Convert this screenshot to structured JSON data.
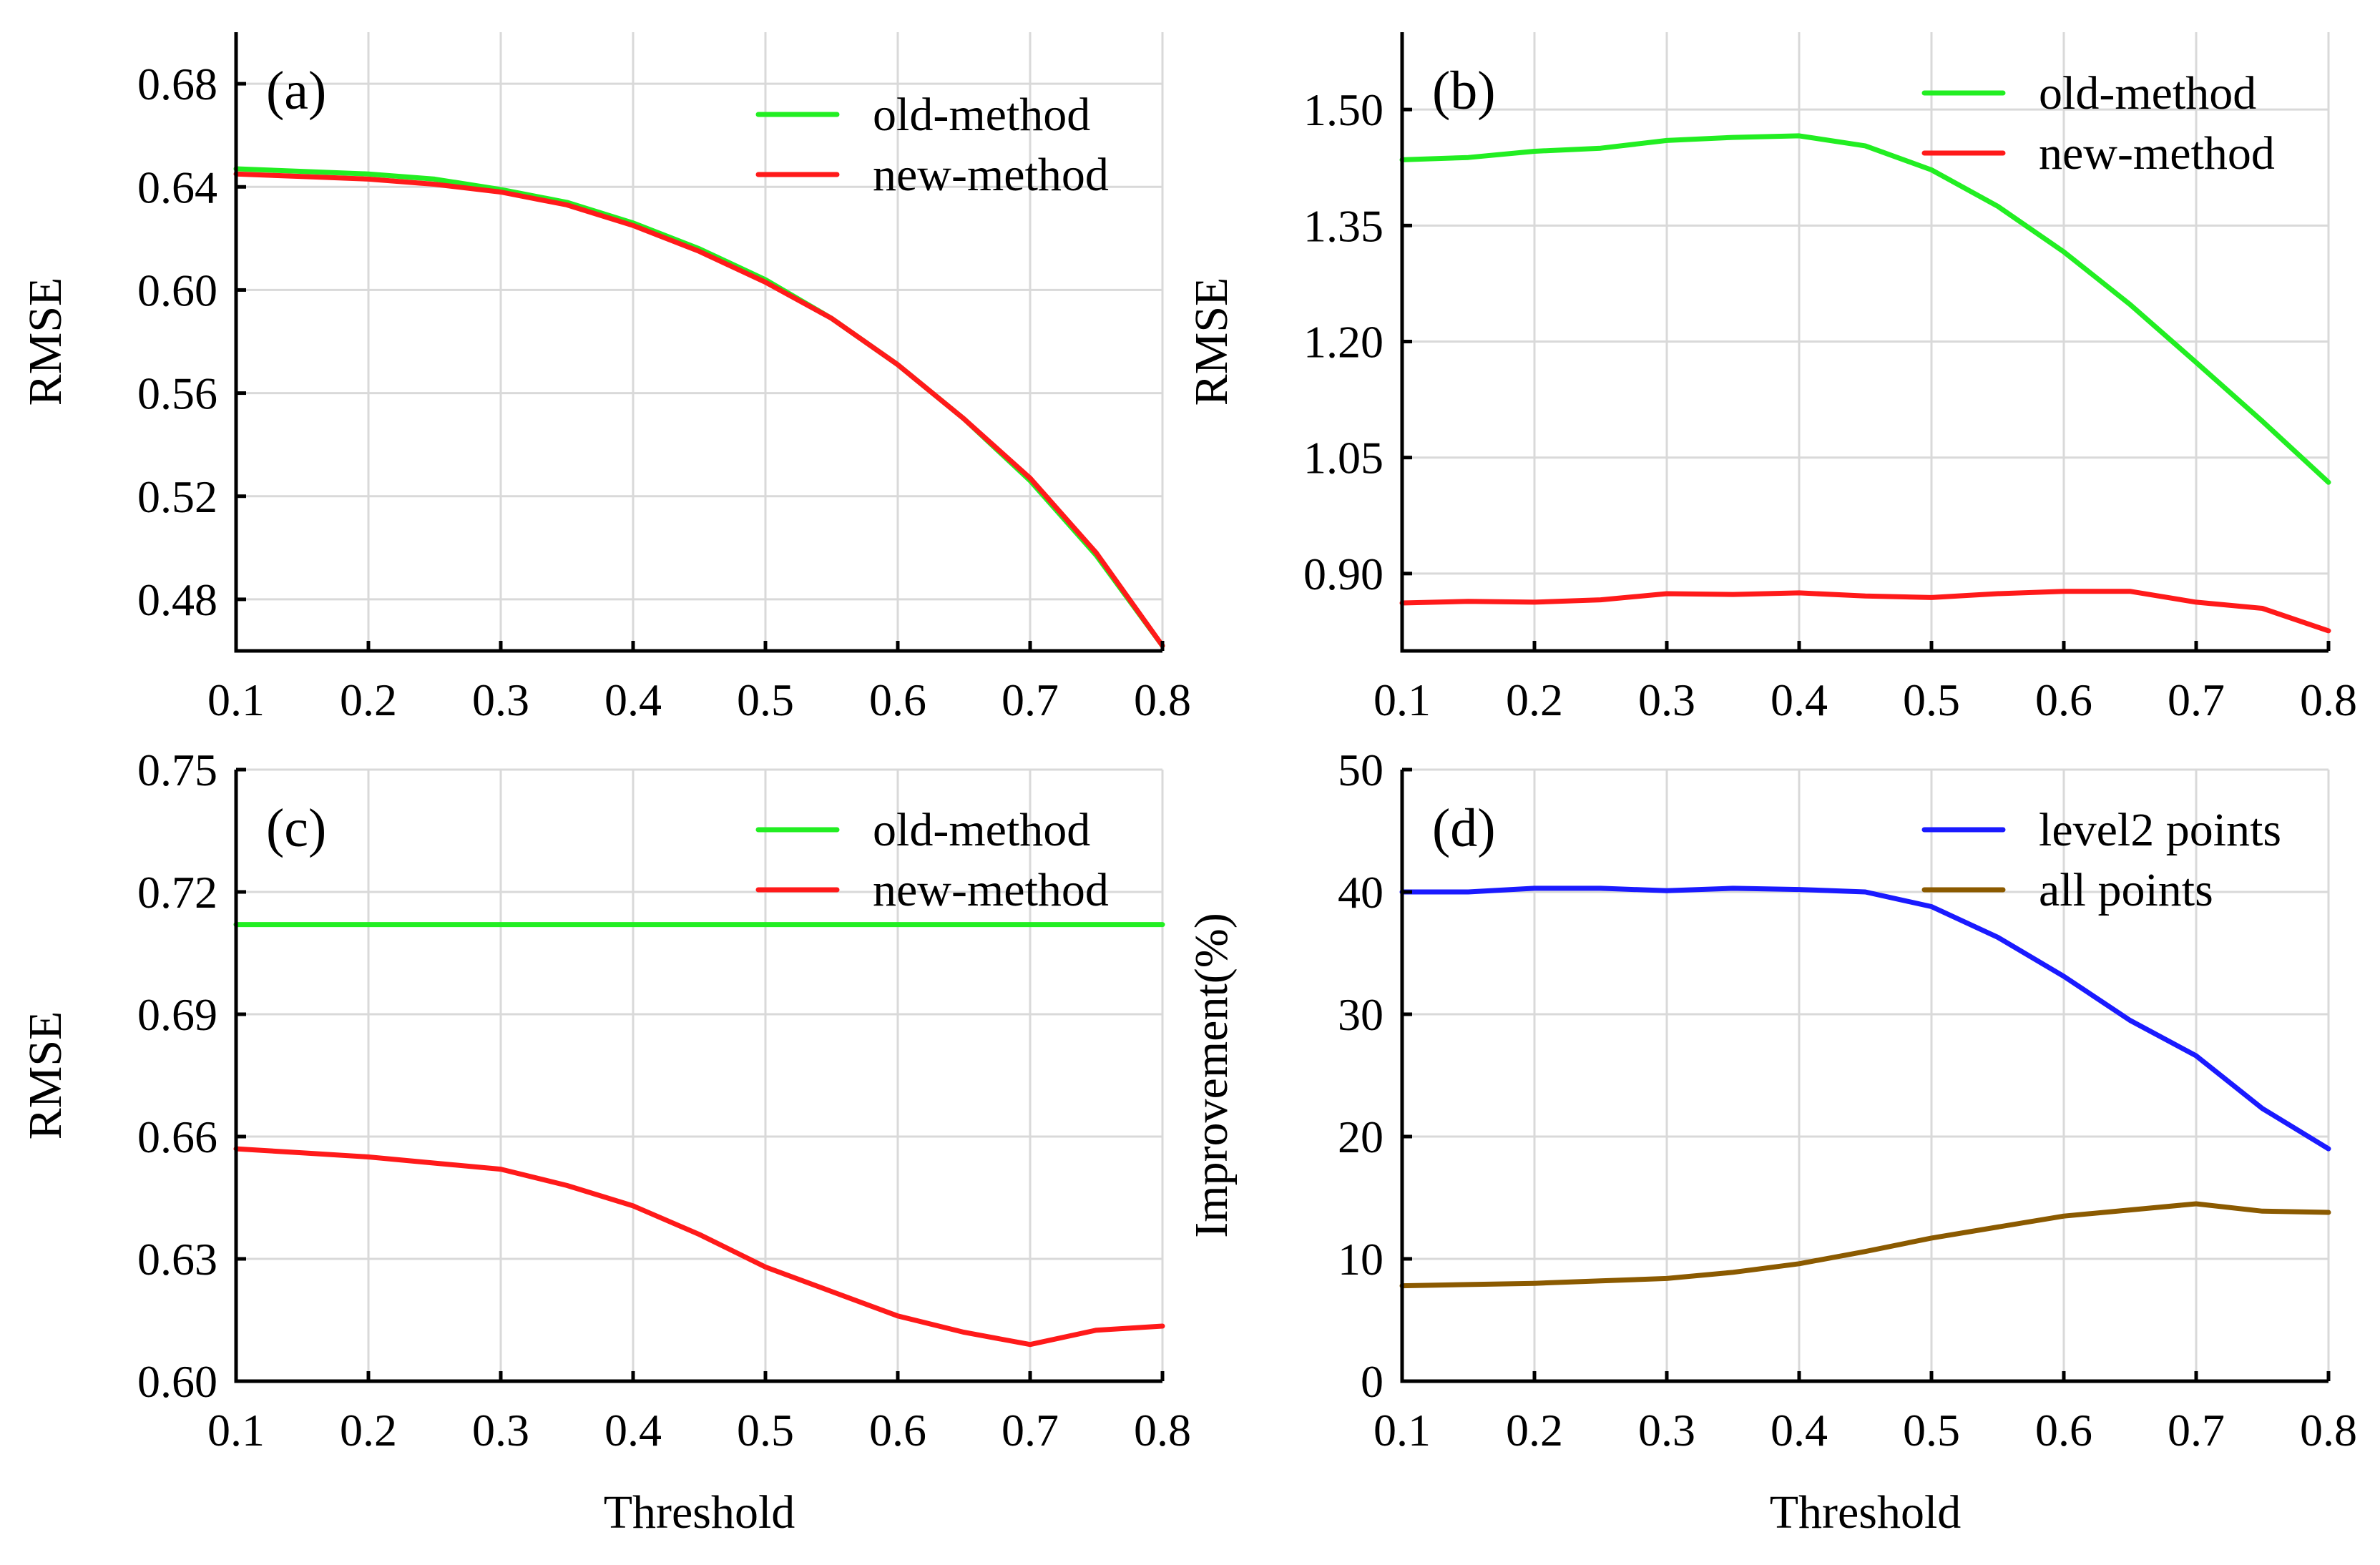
{
  "chart_data": [
    {
      "panel": "(a)",
      "type": "line",
      "xlabel": "",
      "ylabel": "RMSE",
      "xlim": [
        0.1,
        0.8
      ],
      "ylim": [
        0.46,
        0.7
      ],
      "xticks": [
        "0.1",
        "0.2",
        "0.3",
        "0.4",
        "0.5",
        "0.6",
        "0.7",
        "0.8"
      ],
      "yticks": [
        "0.48",
        "0.52",
        "0.56",
        "0.60",
        "0.64",
        "0.68"
      ],
      "legend_position": "top-right",
      "x": [
        0.1,
        0.15,
        0.2,
        0.25,
        0.3,
        0.35,
        0.4,
        0.45,
        0.5,
        0.55,
        0.6,
        0.65,
        0.7,
        0.75,
        0.8
      ],
      "series": [
        {
          "name": "old-method",
          "color": "#22ee22",
          "values": [
            0.647,
            0.646,
            0.645,
            0.643,
            0.639,
            0.634,
            0.626,
            0.616,
            0.604,
            0.589,
            0.571,
            0.55,
            0.526,
            0.497,
            0.462
          ]
        },
        {
          "name": "new-method",
          "color": "#ff1a1a",
          "values": [
            0.645,
            0.644,
            0.643,
            0.641,
            0.638,
            0.633,
            0.625,
            0.615,
            0.603,
            0.589,
            0.571,
            0.55,
            0.527,
            0.498,
            0.462
          ]
        }
      ]
    },
    {
      "panel": "(b)",
      "type": "line",
      "xlabel": "",
      "ylabel": "RMSE",
      "xlim": [
        0.1,
        0.8
      ],
      "ylim": [
        0.8,
        1.6
      ],
      "xticks": [
        "0.1",
        "0.2",
        "0.3",
        "0.4",
        "0.5",
        "0.6",
        "0.7",
        "0.8"
      ],
      "yticks": [
        "0.90",
        "1.05",
        "1.20",
        "1.35",
        "1.50"
      ],
      "legend_position": "top-right",
      "x": [
        0.1,
        0.15,
        0.2,
        0.25,
        0.3,
        0.35,
        0.4,
        0.45,
        0.5,
        0.55,
        0.6,
        0.65,
        0.7,
        0.75,
        0.8
      ],
      "series": [
        {
          "name": "old-method",
          "color": "#22ee22",
          "values": [
            1.435,
            1.438,
            1.446,
            1.45,
            1.46,
            1.464,
            1.466,
            1.453,
            1.422,
            1.375,
            1.316,
            1.248,
            1.173,
            1.097,
            1.018
          ]
        },
        {
          "name": "new-method",
          "color": "#ff1a1a",
          "values": [
            0.862,
            0.864,
            0.863,
            0.866,
            0.874,
            0.873,
            0.875,
            0.871,
            0.869,
            0.874,
            0.877,
            0.877,
            0.863,
            0.855,
            0.826
          ]
        }
      ]
    },
    {
      "panel": "(c)",
      "type": "line",
      "xlabel": "Threshold",
      "ylabel": "RMSE",
      "xlim": [
        0.1,
        0.8
      ],
      "ylim": [
        0.6,
        0.75
      ],
      "xticks": [
        "0.1",
        "0.2",
        "0.3",
        "0.4",
        "0.5",
        "0.6",
        "0.7",
        "0.8"
      ],
      "yticks": [
        "0.60",
        "0.63",
        "0.66",
        "0.69",
        "0.72",
        "0.75"
      ],
      "legend_position": "top-right",
      "x": [
        0.1,
        0.15,
        0.2,
        0.25,
        0.3,
        0.35,
        0.4,
        0.45,
        0.5,
        0.55,
        0.6,
        0.65,
        0.7,
        0.75,
        0.8
      ],
      "series": [
        {
          "name": "old-method",
          "color": "#22ee22",
          "values": [
            0.712,
            0.712,
            0.712,
            0.712,
            0.712,
            0.712,
            0.712,
            0.712,
            0.712,
            0.712,
            0.712,
            0.712,
            0.712,
            0.712,
            0.712
          ]
        },
        {
          "name": "new-method",
          "color": "#ff1a1a",
          "values": [
            0.657,
            0.656,
            0.655,
            0.6535,
            0.652,
            0.648,
            0.643,
            0.636,
            0.628,
            0.622,
            0.616,
            0.612,
            0.609,
            0.6125,
            0.6135
          ]
        }
      ]
    },
    {
      "panel": "(d)",
      "type": "line",
      "xlabel": "Threshold",
      "ylabel": "Improvement(%)",
      "xlim": [
        0.1,
        0.8
      ],
      "ylim": [
        0,
        50
      ],
      "xticks": [
        "0.1",
        "0.2",
        "0.3",
        "0.4",
        "0.5",
        "0.6",
        "0.7",
        "0.8"
      ],
      "yticks": [
        "0",
        "10",
        "20",
        "30",
        "40",
        "50"
      ],
      "legend_position": "top-right",
      "x": [
        0.1,
        0.15,
        0.2,
        0.25,
        0.3,
        0.35,
        0.4,
        0.45,
        0.5,
        0.55,
        0.6,
        0.65,
        0.7,
        0.75,
        0.8
      ],
      "series": [
        {
          "name": "level2 points",
          "color": "#1a1aff",
          "values": [
            40.0,
            40.0,
            40.3,
            40.3,
            40.1,
            40.3,
            40.2,
            40.0,
            38.8,
            36.3,
            33.1,
            29.5,
            26.6,
            22.3,
            19.0
          ]
        },
        {
          "name": "all points",
          "color": "#8b5a00",
          "values": [
            7.8,
            7.9,
            8.0,
            8.2,
            8.4,
            8.9,
            9.6,
            10.6,
            11.7,
            12.6,
            13.5,
            14.0,
            14.5,
            13.9,
            13.8
          ]
        }
      ]
    }
  ]
}
